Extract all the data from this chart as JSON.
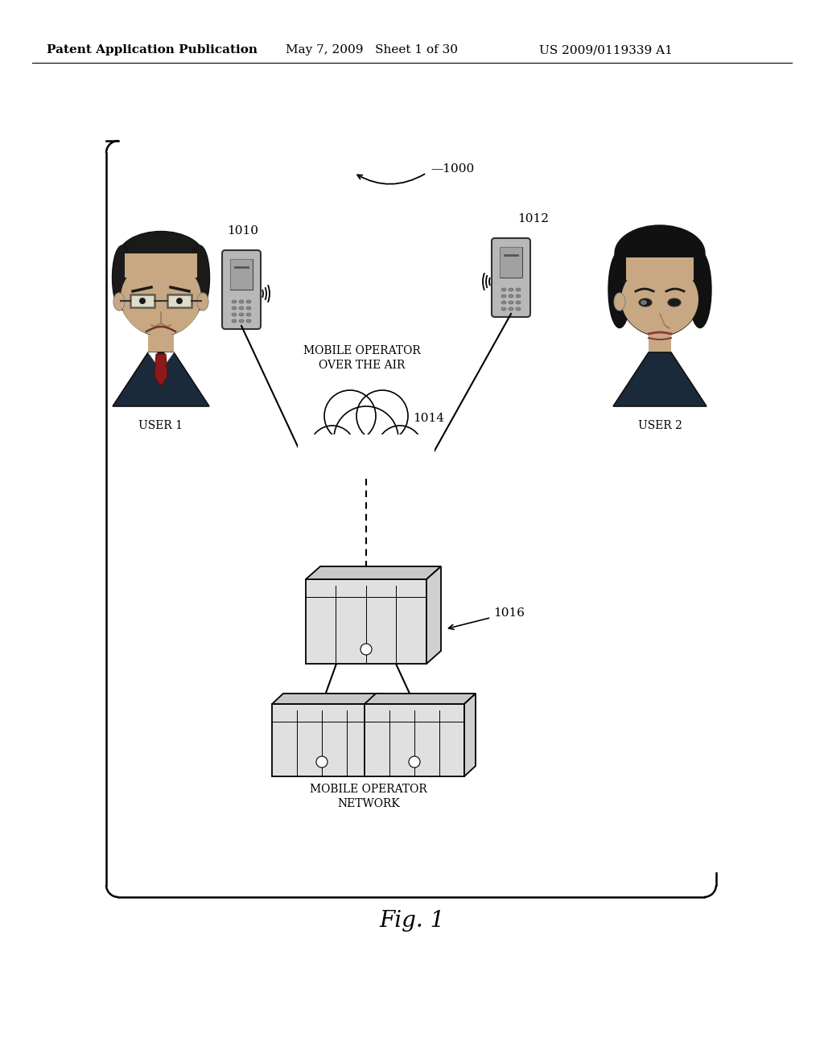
{
  "bg_color": "#ffffff",
  "text_color": "#000000",
  "header_left": "Patent Application Publication",
  "header_mid": "May 7, 2009   Sheet 1 of 30",
  "header_right": "US 2009/0119339 A1",
  "label_1000": "—1000",
  "label_1010": "1010",
  "label_1012": "1012",
  "label_1014": "1014",
  "label_1016": "1016",
  "user1_label": "USER 1",
  "user2_label": "USER 2",
  "mobile_operator_label": "MOBILE OPERATOR\nOVER THE AIR",
  "network_label": "MOBILE OPERATOR\nNETWORK",
  "fig_label": "Fig. 1",
  "header_fontsize": 11,
  "label_fontsize": 10,
  "fig_fontsize": 20
}
